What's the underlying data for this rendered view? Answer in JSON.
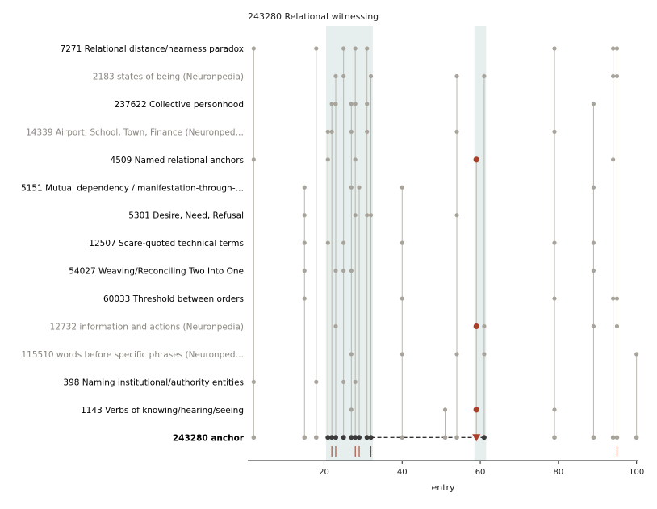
{
  "chart_data": {
    "type": "scatter",
    "title": "243280  Relational witnessing",
    "xlabel": "entry",
    "ylabel": "",
    "xlim": [
      0,
      100
    ],
    "x_ticks": [
      20,
      40,
      60,
      80,
      100
    ],
    "highlight_bands": [
      [
        20.5,
        32.5
      ],
      [
        58.5,
        61.5
      ]
    ],
    "colors": {
      "point": "#a8a49b",
      "stem": "#b9b6ae",
      "anchor_point": "#3b3b3b",
      "accent": "#a8402c",
      "band": "#e6efed",
      "muted_label": "#8a8780",
      "label": "#000000"
    },
    "rows": [
      {
        "label": "7271  Relational distance/nearness paradox",
        "muted": false,
        "bold": false,
        "x": [
          2,
          18,
          25,
          28,
          31,
          79,
          94,
          95
        ],
        "highlight": []
      },
      {
        "label": "2183  states of being (Neuronpedia)",
        "muted": true,
        "bold": false,
        "x": [
          23,
          25,
          32,
          54,
          61,
          94,
          95
        ],
        "highlight": []
      },
      {
        "label": "237622  Collective personhood",
        "muted": false,
        "bold": false,
        "x": [
          22,
          23,
          27,
          28,
          31,
          89
        ],
        "highlight": []
      },
      {
        "label": "14339  Airport, School, Town, Finance (Neuronped…",
        "muted": true,
        "bold": false,
        "x": [
          21,
          22,
          27,
          31,
          54,
          79
        ],
        "highlight": []
      },
      {
        "label": "4509  Named relational anchors",
        "muted": false,
        "bold": false,
        "x": [
          2,
          21,
          28,
          94
        ],
        "highlight": [
          59
        ]
      },
      {
        "label": "5151  Mutual dependency / manifestation-through-…",
        "muted": false,
        "bold": false,
        "x": [
          15,
          27,
          29,
          40,
          89
        ],
        "highlight": []
      },
      {
        "label": "5301  Desire, Need, Refusal",
        "muted": false,
        "bold": false,
        "x": [
          15,
          28,
          31,
          32,
          54
        ],
        "highlight": []
      },
      {
        "label": "12507  Scare-quoted technical terms",
        "muted": false,
        "bold": false,
        "x": [
          15,
          21,
          25,
          40,
          79,
          89
        ],
        "highlight": []
      },
      {
        "label": "54027  Weaving/Reconciling Two Into One",
        "muted": false,
        "bold": false,
        "x": [
          15,
          23,
          25,
          27,
          89
        ],
        "highlight": []
      },
      {
        "label": "60033  Threshold between orders",
        "muted": false,
        "bold": false,
        "x": [
          15,
          40,
          79,
          94,
          95
        ],
        "highlight": []
      },
      {
        "label": "12732  information and actions (Neuronpedia)",
        "muted": true,
        "bold": false,
        "x": [
          23,
          61,
          89,
          95
        ],
        "highlight": [
          59
        ]
      },
      {
        "label": "115510  words before specific phrases (Neuronped…",
        "muted": true,
        "bold": false,
        "x": [
          27,
          40,
          54,
          61,
          100
        ],
        "highlight": []
      },
      {
        "label": "398  Naming institutional/authority entities",
        "muted": false,
        "bold": false,
        "x": [
          2,
          18,
          25,
          28
        ],
        "highlight": []
      },
      {
        "label": "1143  Verbs of knowing/hearing/seeing",
        "muted": false,
        "bold": false,
        "x": [
          27,
          51,
          79
        ],
        "highlight": [
          59
        ]
      }
    ],
    "anchor": {
      "label": "243280  anchor",
      "bold": true,
      "x_gray": [
        2,
        15,
        18,
        40,
        51,
        54,
        79,
        89,
        94,
        95,
        100
      ],
      "x_dark": [
        21,
        22,
        23,
        25,
        27,
        28,
        29,
        31,
        32,
        61
      ],
      "x_marker": 59,
      "dashed_from": 32,
      "dashed_to": 61
    },
    "rug_ticks": [
      22,
      23,
      28,
      29,
      32,
      95
    ]
  }
}
